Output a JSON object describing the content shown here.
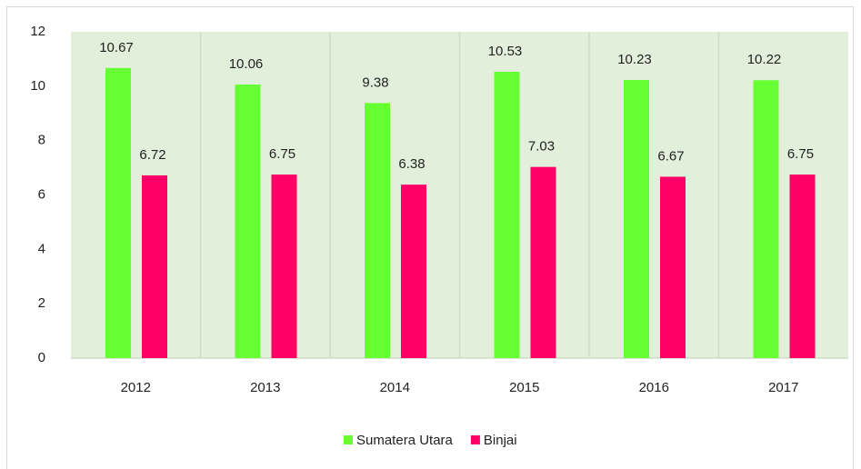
{
  "chart_data": {
    "type": "bar",
    "categories": [
      "2012",
      "2013",
      "2014",
      "2015",
      "2016",
      "2017"
    ],
    "series": [
      {
        "name": "Sumatera Utara",
        "color": "#66ff33",
        "values": [
          10.67,
          10.06,
          9.38,
          10.53,
          10.23,
          10.22
        ]
      },
      {
        "name": "Binjai",
        "color": "#ff0066",
        "values": [
          6.72,
          6.75,
          6.38,
          7.03,
          6.67,
          6.75
        ]
      }
    ],
    "ylim": [
      0,
      12
    ],
    "yticks": [
      0,
      2,
      4,
      6,
      8,
      10,
      12
    ],
    "legend": "bottom",
    "data_labels": true
  }
}
